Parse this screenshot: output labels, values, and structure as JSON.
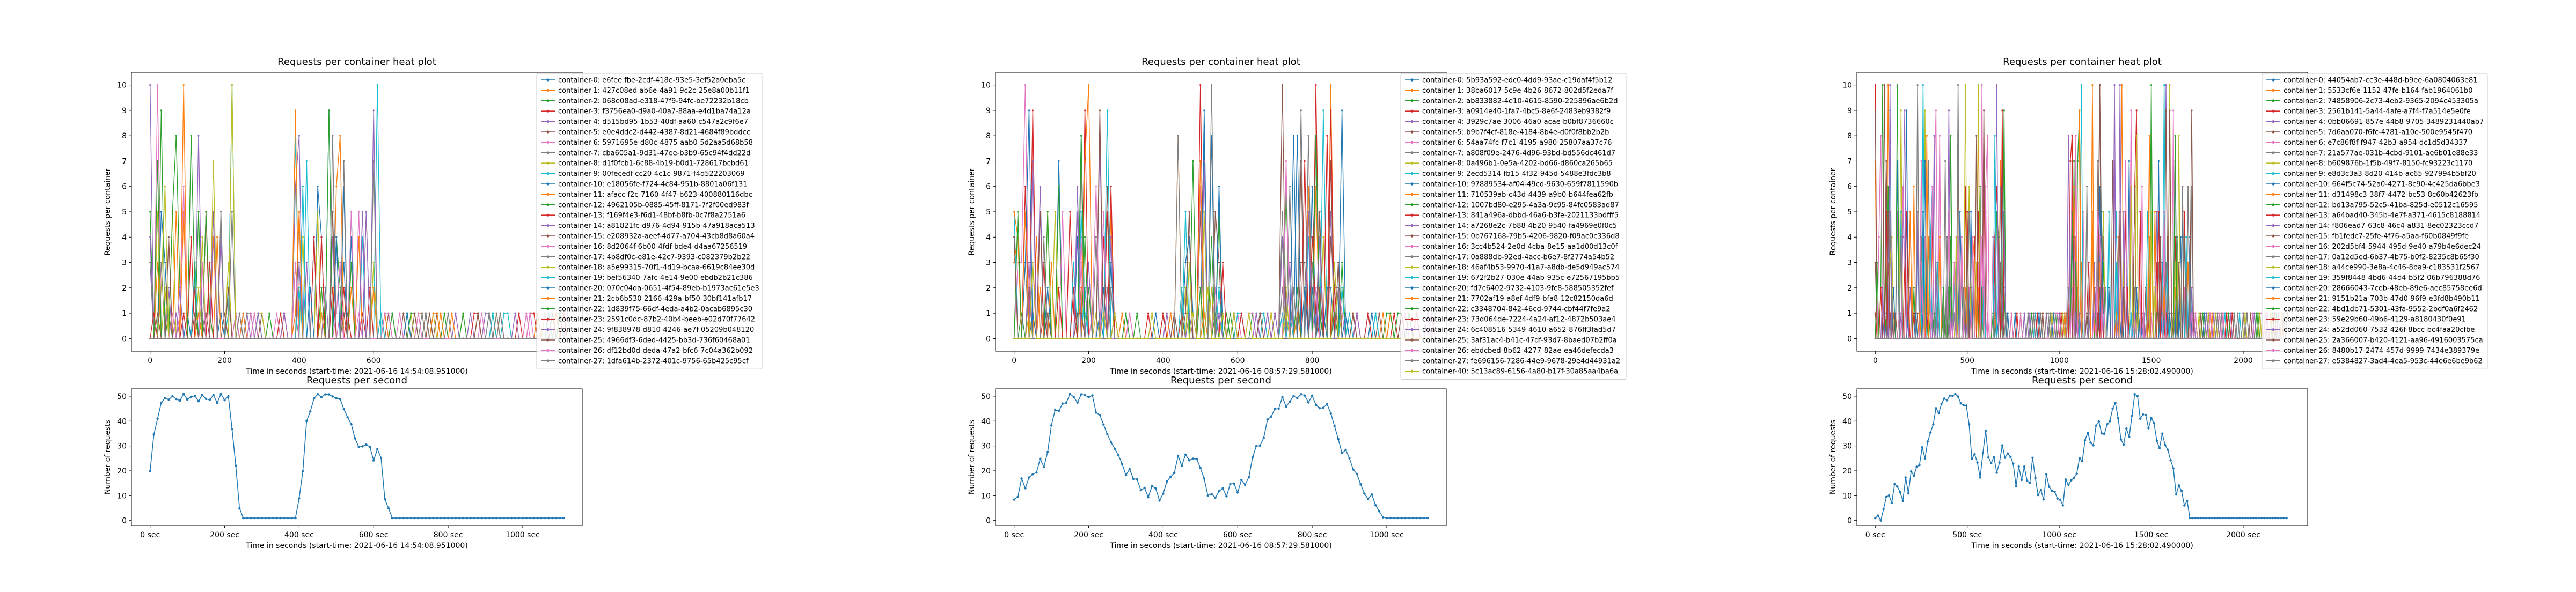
{
  "panels": [
    {
      "heat_title": "Requests per container heat plot",
      "heat_ylabel": "Requests per container",
      "heat_xlabel": "Time in seconds (start-time: 2021-06-16 14:54:08.951000)",
      "rps_title": "Requests per second",
      "rps_ylabel": "Number of requests",
      "rps_xlabel": "Time in seconds (start-time: 2021-06-16 14:54:08.951000)",
      "legend": [
        "container-0: e6fee fbe-2cdf-418e-93e5-3ef52a0eba5c",
        "container-1: 427c08ed-ab6e-4a91-9c2c-25e8a00b11f1",
        "container-2: 068e08ad-e318-47f9-94fc-be72232b18cb",
        "container-3: f3756ea0-d9a0-40a7-88aa-e4d1ba74a12a",
        "container-4: d515bd95-1b53-40df-aa60-c547a2c9f6e7",
        "container-5: e0e4ddc2-d442-4387-8d21-4684f89bddcc",
        "container-6: 5971695e-d80c-4875-aab0-5d2aa5d68b58",
        "container-7: cba605a1-9d31-47ee-b3b9-65c94f4dd22d",
        "container-8: d1f0fcb1-6c88-4b19-b0d1-728617bcbd61",
        "container-9: 00fecedf-cc20-4c1c-9871-f4d522203069",
        "container-10: e18056fe-f724-4c84-951b-8801a06f131",
        "container-11: afacc f2c-7160-4f47-b623-400880116dbc",
        "container-12: 4962105b-0885-45ff-8171-7f2f00ed983f",
        "container-13: f169f4e3-f6d1-48bf-b8fb-0c7f8a2751a6",
        "container-14: a81821fc-d976-4d94-915b-47a918aca513",
        "container-15: e208932a-aeef-4d77-a704-43cb8d8a60a4",
        "container-16: 8d2064f-6b00-4fdf-bde4-d4aa67256519",
        "container-17: 4b8df0c-e81e-42c7-9393-c082379b2b22",
        "container-18: a5e99315-70f1-4d19-bcaa-6619c84ee30d",
        "container-19: bef56340-7afc-4e14-9e00-ebdb2b21c386",
        "container-20: 070c04da-0651-4f54-89eb-b1973ac61e5e3",
        "container-21: 2cb6b530-2166-429a-bf50-30bf141afb17",
        "container-22: 1d839f75-66df-4eda-a4b2-0acab6895c30",
        "container-23: 2591c0dc-87b2-40b4-beeb-e02d70f77642",
        "container-24: 9f838978-d810-4246-ae7f-05209b048120",
        "container-25: 4966df3-6ded-4425-bb3d-736f60468a01",
        "container-26: df12bd0d-deda-47a2-bfc6-7c04a362b092",
        "container-27: 1dfa614b-2372-401c-9756-65b425c95cf"
      ],
      "heat_chart_data": {
        "type": "line",
        "x_range": [
          -50,
          1160
        ],
        "ylim": [
          -0.5,
          10.5
        ],
        "xticks": [
          0,
          200,
          400,
          600
        ],
        "yticks": [
          0,
          1,
          2,
          3,
          4,
          5,
          6,
          7,
          8,
          9,
          10
        ],
        "duration": 1130,
        "active_bursts": [
          [
            0,
            220
          ],
          [
            390,
            610
          ]
        ],
        "seed": 11
      },
      "rps_chart_data": {
        "type": "line",
        "x_range": [
          -50,
          1160
        ],
        "ylim": [
          -2,
          53
        ],
        "xticks": [
          0,
          200,
          400,
          600,
          800,
          1000
        ],
        "xtick_labels": [
          "0 sec",
          "200 sec",
          "400 sec",
          "600 sec",
          "800 sec",
          "1000 sec"
        ],
        "yticks": [
          0,
          10,
          20,
          30,
          40,
          50
        ],
        "keypoints": [
          [
            0,
            21
          ],
          [
            15,
            40
          ],
          [
            35,
            48
          ],
          [
            60,
            50
          ],
          [
            100,
            50
          ],
          [
            150,
            49
          ],
          [
            210,
            49
          ],
          [
            225,
            30
          ],
          [
            240,
            5
          ],
          [
            250,
            1
          ],
          [
            390,
            1
          ],
          [
            405,
            10
          ],
          [
            420,
            40
          ],
          [
            440,
            50
          ],
          [
            500,
            50
          ],
          [
            530,
            42
          ],
          [
            560,
            31
          ],
          [
            580,
            32
          ],
          [
            600,
            25
          ],
          [
            615,
            33
          ],
          [
            630,
            10
          ],
          [
            650,
            1
          ],
          [
            1110,
            1
          ]
        ],
        "step": 10,
        "noise": 2,
        "seed": 5
      }
    },
    {
      "heat_title": "Requests per container heat plot",
      "heat_ylabel": "Requests per container",
      "heat_xlabel": "Time in seconds (start-time: 2021-06-16 08:57:29.581000)",
      "rps_title": "Requests per second",
      "rps_ylabel": "Number of requests",
      "rps_xlabel": "Time in seconds (start-time: 2021-06-16 08:57:29.581000)",
      "legend": [
        "container-0: 5b93a592-edc0-4dd9-93ae-c19daf4f5b12",
        "container-1: 38ba6017-5c9e-4b26-8672-802d5f2eda7f",
        "container-2: ab833882-4e10-4615-8590-225896ae6b2d",
        "container-3: a0914e40-1fa7-4bc5-8e6f-2483eb9382f9",
        "container-4: 3929c7ae-3006-46a0-acae-b0bf8736660c",
        "container-5: b9b7f4cf-818e-4184-8b4e-d0f0f8bb2b2b",
        "container-6: 54aa74fc-f7c1-4195-a980-25807aa37c76",
        "container-7: a808f09e-2476-4d96-93bd-bd556dc461d7",
        "container-8: 0a496b1-0e5a-4202-bd66-d860ca265b65",
        "container-9: 2ecd5314-fb15-4f32-945d-5488e3fdc3b8",
        "container-10: 97889534-af04-49cd-9630-659f7811590b",
        "container-11: 710539ab-c43d-4439-a9b0-b644fea62fb",
        "container-12: 1007bd80-e295-4a3a-9c95-84fc0583ad87",
        "container-13: 841a496a-dbbd-46a6-b3fe-2021133bdfff5",
        "container-14: a7268e2c-7b88-4b20-9540-fa4969e0f0c5",
        "container-15: 0b767168-79b5-4206-9820-f09ac0c336d8",
        "container-16: 3cc4b524-2e0d-4cba-8e15-aa1d00d13c0f",
        "container-17: 0a888db-92ed-4acc-b6e7-8f2774a54b52",
        "container-18: 46af4b53-9970-41a7-a8db-de5d949ac574",
        "container-19: 672f2b27-030e-44ab-935c-e72567195bb5",
        "container-20: fd7c6402-9732-4103-9fc8-588505352fef",
        "container-21: 7702af19-a8ef-4df9-bfa8-12c82150da6d",
        "container-22: c3348704-842-46cd-9744-cbf44f7fe9a2",
        "container-23: 73d064de-7224-4a24-af12-4872b503ae4",
        "container-24: 6c408516-5349-4610-a652-876ff3fad5d7",
        "container-25: 3af31ac4-b41c-47df-93d7-8baed07b2ff0a",
        "container-26: ebdcbed-8b62-4277-82ae-ea46defecda3",
        "container-27: fe696156-7286-44e9-9678-29e4d44931a2",
        "container-40: 5c13ac89-6156-4a80-b17f-30a85aa4ba6a"
      ],
      "heat_chart_data": {
        "type": "line",
        "x_range": [
          -50,
          1160
        ],
        "ylim": [
          -0.5,
          10.5
        ],
        "xticks": [
          0,
          200,
          400,
          600,
          800
        ],
        "yticks": [
          0,
          1,
          2,
          3,
          4,
          5,
          6,
          7,
          8,
          9,
          10
        ],
        "duration": 1130,
        "active_bursts": [
          [
            0,
            260
          ],
          [
            440,
            560
          ],
          [
            720,
            880
          ]
        ],
        "seed": 23
      },
      "rps_chart_data": {
        "type": "line",
        "x_range": [
          -50,
          1160
        ],
        "ylim": [
          -2,
          53
        ],
        "xticks": [
          0,
          200,
          400,
          600,
          800,
          1000
        ],
        "xtick_labels": [
          "0 sec",
          "200 sec",
          "400 sec",
          "600 sec",
          "800 sec",
          "1000 sec"
        ],
        "yticks": [
          0,
          10,
          20,
          30,
          40,
          50
        ],
        "keypoints": [
          [
            0,
            10
          ],
          [
            40,
            18
          ],
          [
            80,
            24
          ],
          [
            110,
            42
          ],
          [
            140,
            50
          ],
          [
            200,
            50
          ],
          [
            230,
            44
          ],
          [
            260,
            30
          ],
          [
            300,
            21
          ],
          [
            330,
            14
          ],
          [
            360,
            12
          ],
          [
            400,
            10
          ],
          [
            440,
            25
          ],
          [
            470,
            23
          ],
          [
            500,
            22
          ],
          [
            520,
            12
          ],
          [
            570,
            11
          ],
          [
            620,
            15
          ],
          [
            660,
            32
          ],
          [
            700,
            45
          ],
          [
            740,
            50
          ],
          [
            800,
            50
          ],
          [
            840,
            46
          ],
          [
            880,
            30
          ],
          [
            910,
            20
          ],
          [
            950,
            10
          ],
          [
            980,
            5
          ],
          [
            1000,
            1
          ],
          [
            1110,
            1
          ]
        ],
        "step": 10,
        "noise": 3,
        "seed": 9
      }
    },
    {
      "heat_title": "Requests per container heat plot",
      "heat_ylabel": "Requests per container",
      "heat_xlabel": "Time in seconds (start-time: 2021-06-16 15:28:02.490000)",
      "rps_title": "Requests per second",
      "rps_ylabel": "Number of requests",
      "rps_xlabel": "Time in seconds (start-time: 2021-06-16 15:28:02.490000)",
      "legend": [
        "container-0: 44054ab7-cc3e-448d-b9ee-6a0804063e81",
        "container-1: 5533cf6e-1152-47fe-b164-fab1964061b0",
        "container-2: 74858906-2c73-4eb2-9365-2094c453305a",
        "container-3: 2561b141-5a44-4afe-a7f4-f7a514e5e0fe",
        "container-4: 0bb06691-857e-44b8-9705-3489231440ab7",
        "container-5: 7d6aa070-f6fc-4781-a10e-500e9545f470",
        "container-6: e7c86f8f-f947-42b3-a954-dc1d5d34337",
        "container-7: 21a577ae-031b-4cbd-9101-ae6b01e88e33",
        "container-8: b609876b-1f5b-49f7-8150-fc93223c1170",
        "container-9: e8d3c3a3-8d20-414b-ac65-927994b5bf20",
        "container-10: 664f5c74-52a0-4271-8c90-4c425da6bbe3",
        "container-11: d31498c3-38f7-4472-bc53-8c60b42623fb",
        "container-12: bd13a795-52c5-41ba-825d-e0512c16595",
        "container-13: a64bad40-345b-4e7f-a371-4615c8188814",
        "container-14: f806ead7-63c8-46c4-a831-8ec02323ccd7",
        "container-15: fb1fedc7-25fe-4f76-a5aa-f60b0849f9fe",
        "container-16: 202d5bf4-5944-495d-9e40-a79b4e6dec24",
        "container-17: 0a12d5ed-6b37-4b75-b0f2-8235c8b65f30",
        "container-18: a44ce990-3e8a-4c46-8ba9-c183531f2567",
        "container-19: 359f8448-4bd6-44d4-b5f2-06b796388d76",
        "container-20: 28666043-7ceb-48eb-89e6-aec85758ee6d",
        "container-21: 9151b21a-703b-47d0-96f9-e3fd8b490b11",
        "container-22: 4bd1db71-5301-43fa-9552-2bdf0a6f2462",
        "container-23: 59e29b60-49b6-4129-a8180430f0e91",
        "container-24: a52dd060-7532-426f-8bcc-bc4faa20cfbe",
        "container-25: 2a366007-b420-4121-aa96-4916003575ca",
        "container-26: 8480b17-2474-457d-9999-7434e389379e",
        "container-27: e5384827-3ad4-4ea5-953c-44e6e6be9b62"
      ],
      "heat_chart_data": {
        "type": "line",
        "x_range": [
          -100,
          2350
        ],
        "ylim": [
          -0.5,
          10.5
        ],
        "xticks": [
          0,
          500,
          1000,
          1500,
          2000
        ],
        "yticks": [
          0,
          1,
          2,
          3,
          4,
          5,
          6,
          7,
          8,
          9,
          10
        ],
        "duration": 2240,
        "active_bursts": [
          [
            0,
            700
          ],
          [
            1050,
            1720
          ]
        ],
        "seed": 41
      },
      "rps_chart_data": {
        "type": "line",
        "x_range": [
          -100,
          2350
        ],
        "ylim": [
          -2,
          53
        ],
        "xticks": [
          0,
          500,
          1000,
          1500,
          2000
        ],
        "xtick_labels": [
          "0 sec",
          "500 sec",
          "1000 sec",
          "1500 sec",
          "2000 sec"
        ],
        "yticks": [
          0,
          10,
          20,
          30,
          40,
          50
        ],
        "keypoints": [
          [
            0,
            1
          ],
          [
            60,
            5
          ],
          [
            120,
            12
          ],
          [
            180,
            15
          ],
          [
            240,
            20
          ],
          [
            300,
            38
          ],
          [
            340,
            46
          ],
          [
            380,
            50
          ],
          [
            500,
            50
          ],
          [
            520,
            30
          ],
          [
            560,
            20
          ],
          [
            600,
            33
          ],
          [
            640,
            20
          ],
          [
            700,
            30
          ],
          [
            750,
            20
          ],
          [
            800,
            17
          ],
          [
            860,
            20
          ],
          [
            900,
            12
          ],
          [
            960,
            15
          ],
          [
            1000,
            7
          ],
          [
            1060,
            17
          ],
          [
            1120,
            25
          ],
          [
            1180,
            34
          ],
          [
            1240,
            38
          ],
          [
            1300,
            42
          ],
          [
            1360,
            35
          ],
          [
            1420,
            48
          ],
          [
            1480,
            40
          ],
          [
            1540,
            32
          ],
          [
            1600,
            25
          ],
          [
            1640,
            15
          ],
          [
            1680,
            8
          ],
          [
            1710,
            1
          ],
          [
            2240,
            1
          ]
        ],
        "step": 15,
        "noise": 6,
        "seed": 3
      }
    }
  ],
  "colors": [
    "#1f77b4",
    "#ff7f0e",
    "#2ca02c",
    "#d62728",
    "#9467bd",
    "#8c564b",
    "#e377c2",
    "#7f7f7f",
    "#bcbd22",
    "#17becf"
  ]
}
